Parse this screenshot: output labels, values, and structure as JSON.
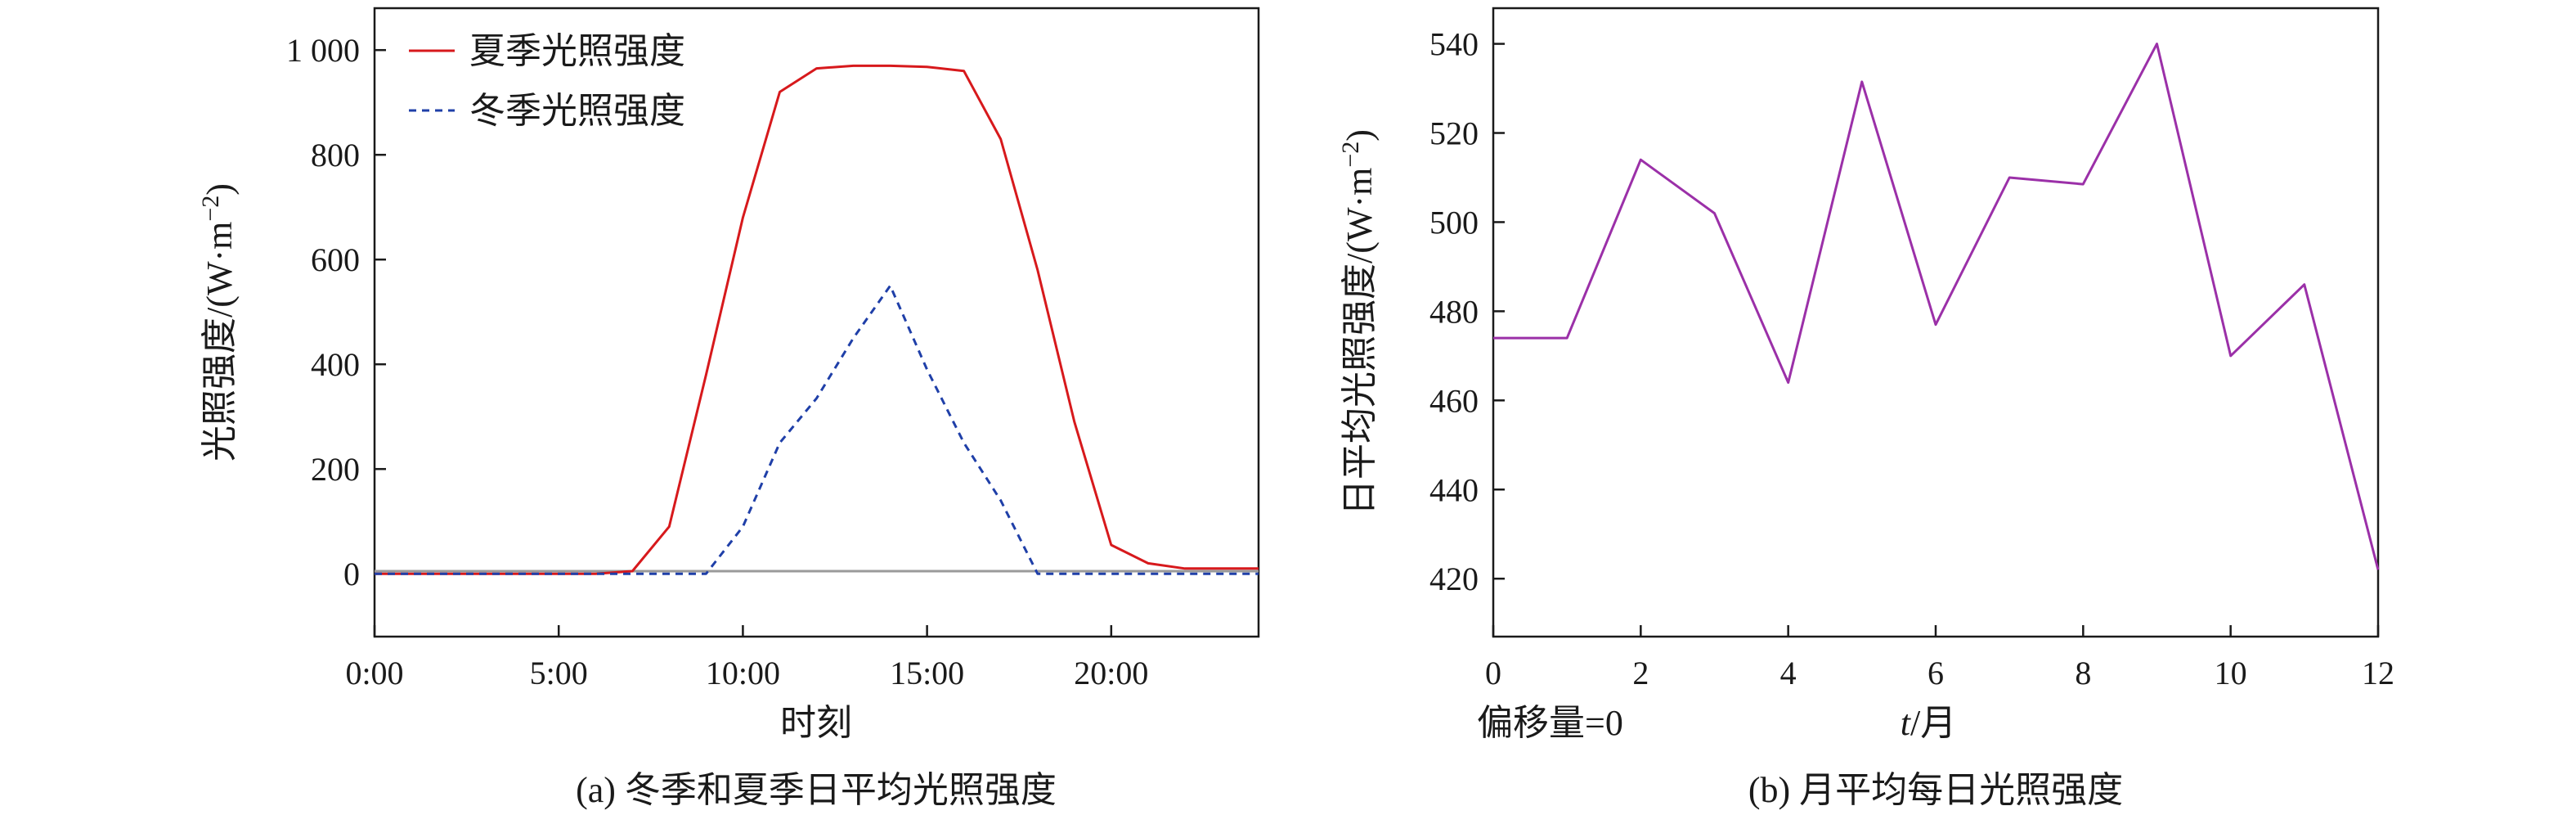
{
  "chart_data": [
    {
      "type": "line",
      "caption": "(a) 冬季和夏季日平均光照强度",
      "xlabel": "时刻",
      "ylabel": "光照强度/(W·m",
      "ylabel_sup": "−2",
      "ylabel_close": ")",
      "xlim": [
        0,
        24
      ],
      "ylim": [
        -120,
        1080
      ],
      "x_ticks": [
        0,
        5,
        10,
        15,
        20
      ],
      "x_tick_labels": [
        "0:00",
        "5:00",
        "10:00",
        "15:00",
        "20:00"
      ],
      "y_ticks": [
        0,
        200,
        400,
        600,
        800,
        1000
      ],
      "y_tick_labels": [
        "0",
        "200",
        "400",
        "600",
        "800",
        "1 000"
      ],
      "legend_position": "top-left",
      "zero_line": true,
      "series": [
        {
          "name": "夏季光照强度",
          "color": "#d7191c",
          "style": "solid",
          "x": [
            0,
            1,
            2,
            3,
            4,
            5,
            6,
            7,
            8,
            9,
            10,
            11,
            12,
            13,
            14,
            15,
            16,
            17,
            18,
            19,
            20,
            21,
            22,
            23,
            24
          ],
          "values": [
            0,
            0,
            0,
            0,
            0,
            0,
            0,
            5,
            90,
            380,
            680,
            920,
            965,
            970,
            970,
            968,
            960,
            830,
            580,
            290,
            55,
            20,
            10,
            10,
            10
          ]
        },
        {
          "name": "冬季光照强度",
          "color": "#1f3fa8",
          "style": "dashed",
          "x": [
            0,
            1,
            2,
            3,
            4,
            5,
            6,
            7,
            8,
            9,
            10,
            11,
            12,
            13,
            14,
            15,
            16,
            17,
            18,
            19,
            20,
            21,
            22,
            23,
            24
          ],
          "values": [
            0,
            0,
            0,
            0,
            0,
            0,
            0,
            0,
            0,
            0,
            90,
            250,
            335,
            450,
            550,
            390,
            250,
            140,
            0,
            0,
            0,
            0,
            0,
            0,
            0
          ]
        }
      ]
    },
    {
      "type": "line",
      "caption": "(b) 月平均每日光照强度",
      "xlabel_italic": "t",
      "xlabel_rest": "/月",
      "ylabel": "日平均光照强度/(W·m",
      "ylabel_sup": "−2",
      "ylabel_close": ")",
      "annotation": "偏移量=0",
      "xlim": [
        0,
        12
      ],
      "ylim": [
        407,
        548
      ],
      "x_ticks": [
        0,
        2,
        4,
        6,
        8,
        10,
        12
      ],
      "x_tick_labels": [
        "0",
        "2",
        "4",
        "6",
        "8",
        "10",
        "12"
      ],
      "y_ticks": [
        420,
        440,
        460,
        480,
        500,
        520,
        540
      ],
      "y_tick_labels": [
        "420",
        "440",
        "460",
        "480",
        "500",
        "520",
        "540"
      ],
      "series": [
        {
          "color": "#9b30a8",
          "style": "solid",
          "x": [
            0,
            1,
            2,
            3,
            4,
            5,
            6,
            7,
            8,
            9,
            10,
            11,
            12
          ],
          "values": [
            474,
            474,
            514,
            502,
            464,
            531.5,
            477,
            510,
            508.5,
            540,
            470,
            486,
            422
          ]
        }
      ]
    }
  ]
}
